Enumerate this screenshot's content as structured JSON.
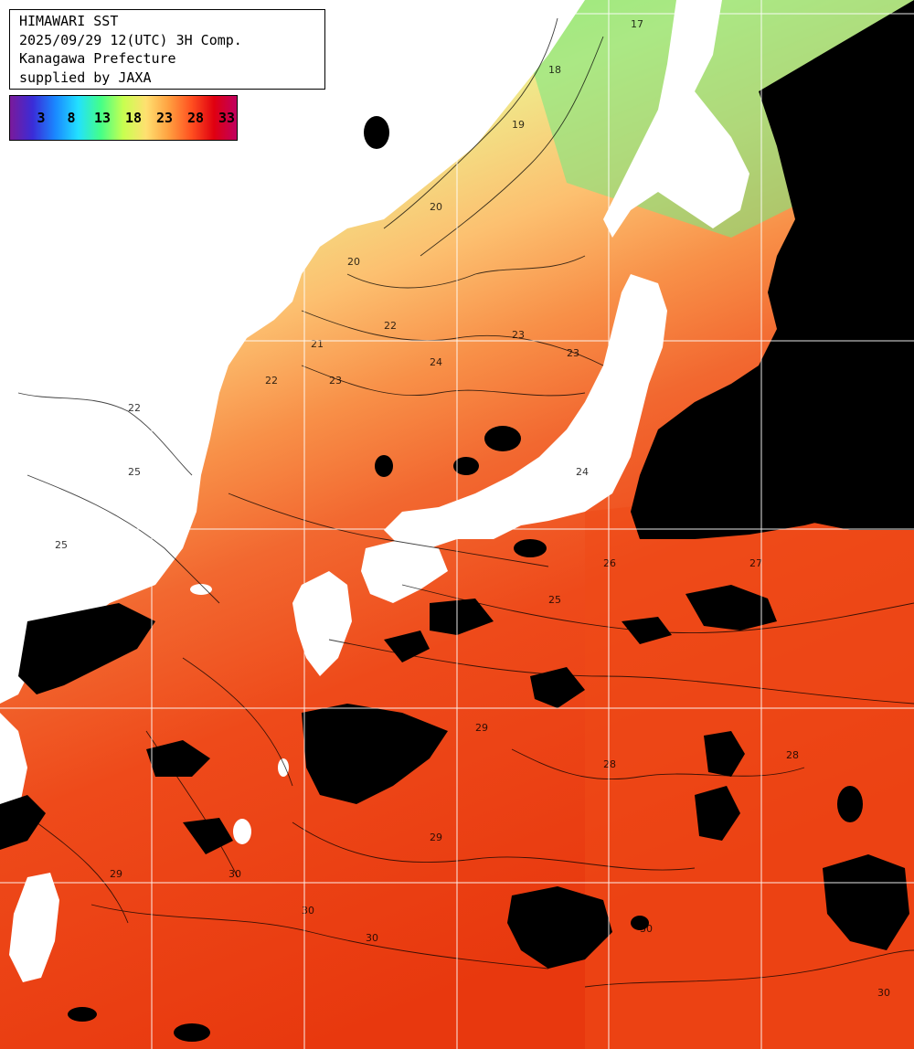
{
  "title": {
    "line1": "HIMAWARI SST",
    "line2": "2025/09/29 12(UTC) 3H Comp.",
    "line3": "Kanagawa Prefecture",
    "line4": "supplied by JAXA"
  },
  "legend": {
    "ticks": [
      "3",
      "8",
      "13",
      "18",
      "23",
      "28",
      "33"
    ],
    "gradient": [
      "#7a1a9a",
      "#3a2cd8",
      "#1a88ff",
      "#22e0ff",
      "#44ff88",
      "#c8ff50",
      "#ffe070",
      "#ffa040",
      "#ff5020",
      "#e00010",
      "#c00060"
    ]
  },
  "contour_labels": [
    "17",
    "18",
    "19",
    "20",
    "20",
    "21",
    "22",
    "22",
    "22",
    "23",
    "23",
    "23",
    "24",
    "24",
    "25",
    "25",
    "25",
    "26",
    "27",
    "28",
    "28",
    "29",
    "29",
    "29",
    "30",
    "30",
    "30",
    "30",
    "30"
  ],
  "colors": {
    "land": "#ffffff",
    "cloud": "#000000",
    "grid": "#ffffff",
    "contour": "#000000",
    "sst_cool": "#88ee66",
    "sst_warm": "#ffd070",
    "sst_hot": "#ef3f10"
  }
}
